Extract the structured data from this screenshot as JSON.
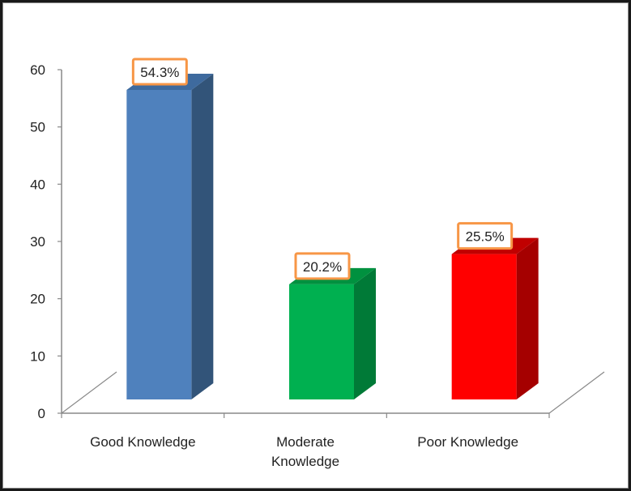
{
  "chart_data": {
    "type": "bar",
    "style": "3d-column",
    "categories": [
      "Good Knowledge",
      "Moderate Knowledge",
      "Poor Knowledge"
    ],
    "category_label_lines": [
      [
        "Good Knowledge"
      ],
      [
        "Moderate",
        "Knowledge"
      ],
      [
        "Poor Knowledge"
      ]
    ],
    "values": [
      54.3,
      20.2,
      25.5
    ],
    "data_labels": [
      "54.3%",
      "20.2%",
      "25.5%"
    ],
    "colors": [
      "#4F81BD",
      "#00B050",
      "#FF0000"
    ],
    "side_colors": [
      "#325479",
      "#007A37",
      "#A50000"
    ],
    "top_colors": [
      "#3E6A9E",
      "#00913F",
      "#C00000"
    ],
    "label_border_color": "#F79646",
    "ylim": [
      0,
      60
    ],
    "yticks": [
      0,
      10,
      20,
      30,
      40,
      50,
      60
    ],
    "title": "",
    "xlabel": "",
    "ylabel": "",
    "grid": false,
    "legend": "none"
  }
}
